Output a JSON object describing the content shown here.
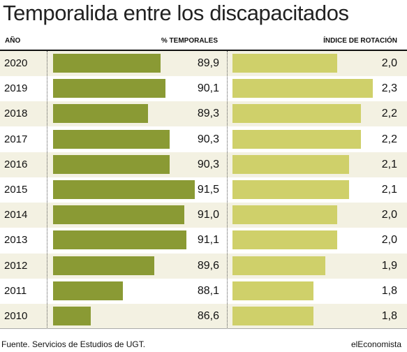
{
  "title": "Temporalida entre los discapacitados",
  "headers": {
    "year": "AÑO",
    "temp": "% TEMPORALES",
    "rot": "ÍNDICE DE ROTACIÓN"
  },
  "source": "Fuente. Servicios de Estudios de UGT.",
  "brand": "elEconomista",
  "colors": {
    "temp_bar": "#8a9a34",
    "rot_bar": "#cfd06a",
    "alt_row": "#f3f1e2"
  },
  "chart_data": {
    "type": "bar",
    "categories": [
      "2020",
      "2019",
      "2018",
      "2017",
      "2016",
      "2015",
      "2014",
      "2013",
      "2012",
      "2011",
      "2010"
    ],
    "series": [
      {
        "name": "% TEMPORALES",
        "values": [
          89.9,
          90.1,
          89.3,
          90.3,
          90.3,
          91.5,
          91.0,
          91.1,
          89.6,
          88.1,
          86.6
        ],
        "labels": [
          "89,9",
          "90,1",
          "89,3",
          "90,3",
          "90,3",
          "91,5",
          "91,0",
          "91,1",
          "89,6",
          "88,1",
          "86,6"
        ]
      },
      {
        "name": "ÍNDICE DE ROTACIÓN",
        "values": [
          2.0,
          2.3,
          2.2,
          2.2,
          2.1,
          2.1,
          2.0,
          2.0,
          1.9,
          1.8,
          1.8
        ],
        "labels": [
          "2,0",
          "2,3",
          "2,2",
          "2,2",
          "2,1",
          "2,1",
          "2,0",
          "2,0",
          "1,9",
          "1,8",
          "1,8"
        ]
      }
    ]
  }
}
